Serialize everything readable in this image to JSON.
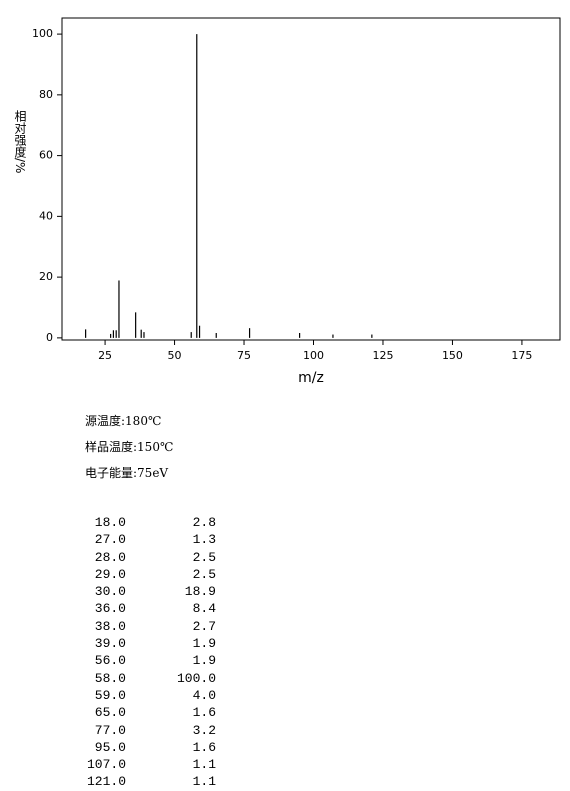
{
  "chart_data": {
    "type": "bar",
    "x_label": "m/z",
    "y_label": "相对强度/%",
    "x": [
      18,
      27,
      28,
      29,
      30,
      36,
      38,
      39,
      56,
      58,
      59,
      65,
      77,
      95,
      107,
      121
    ],
    "values": [
      2.8,
      1.3,
      2.5,
      2.5,
      18.9,
      8.4,
      2.7,
      1.9,
      1.9,
      100.0,
      4.0,
      1.6,
      3.2,
      1.6,
      1.1,
      1.1
    ],
    "color": "#000000",
    "xlim": [
      9.5,
      188.7
    ],
    "xticks": [
      25,
      50,
      75,
      100,
      125,
      150,
      175
    ],
    "ylim": [
      -0.7,
      105.3
    ],
    "yticks": [
      0,
      20,
      40,
      60,
      80,
      100
    ]
  },
  "info": [
    "源温度:180℃",
    "样品温度:150℃",
    "电子能量:75eV"
  ],
  "table": {
    "rows": [
      [
        "18.0",
        "2.8"
      ],
      [
        "27.0",
        "1.3"
      ],
      [
        "28.0",
        "2.5"
      ],
      [
        "29.0",
        "2.5"
      ],
      [
        "30.0",
        "18.9"
      ],
      [
        "36.0",
        "8.4"
      ],
      [
        "38.0",
        "2.7"
      ],
      [
        "39.0",
        "1.9"
      ],
      [
        "56.0",
        "1.9"
      ],
      [
        "58.0",
        "100.0"
      ],
      [
        "59.0",
        "4.0"
      ],
      [
        "65.0",
        "1.6"
      ],
      [
        "77.0",
        "3.2"
      ],
      [
        "95.0",
        "1.6"
      ],
      [
        "107.0",
        "1.1"
      ],
      [
        "121.0",
        "1.1"
      ]
    ]
  }
}
